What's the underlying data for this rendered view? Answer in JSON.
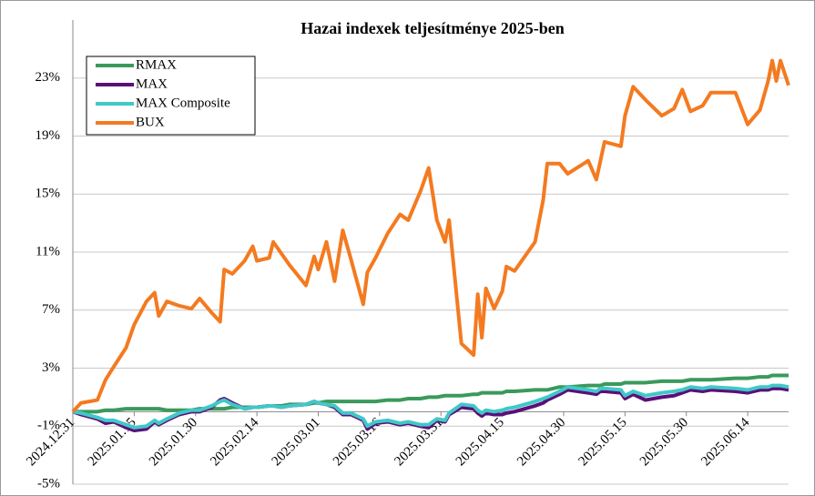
{
  "chart_data": {
    "type": "line",
    "title": "Hazai indexek teljesítménye 2025-ben",
    "x": [
      "2024.12.31",
      "2025.01.02",
      "2025.01.06",
      "2025.01.08",
      "2025.01.10",
      "2025.01.13",
      "2025.01.15",
      "2025.01.18",
      "2025.01.20",
      "2025.01.21",
      "2025.01.23",
      "2025.01.26",
      "2025.01.29",
      "2025.01.31",
      "2025.02.03",
      "2025.02.05",
      "2025.02.06",
      "2025.02.08",
      "2025.02.11",
      "2025.02.13",
      "2025.02.14",
      "2025.02.17",
      "2025.02.18",
      "2025.02.20",
      "2025.02.22",
      "2025.02.26",
      "2025.02.28",
      "2025.03.01",
      "2025.03.03",
      "2025.03.05",
      "2025.03.07",
      "2025.03.09",
      "2025.03.12",
      "2025.03.13",
      "2025.03.15",
      "2025.03.18",
      "2025.03.21",
      "2025.03.23",
      "2025.03.26",
      "2025.03.28",
      "2025.03.30",
      "2025.04.01",
      "2025.04.02",
      "2025.04.05",
      "2025.04.08",
      "2025.04.09",
      "2025.04.10",
      "2025.04.11",
      "2025.04.13",
      "2025.04.15",
      "2025.04.16",
      "2025.04.18",
      "2025.04.23",
      "2025.04.25",
      "2025.04.26",
      "2025.04.29",
      "2025.05.01",
      "2025.05.06",
      "2025.05.08",
      "2025.05.09",
      "2025.05.10",
      "2025.05.14",
      "2025.05.15",
      "2025.05.17",
      "2025.05.20",
      "2025.05.24",
      "2025.05.27",
      "2025.05.29",
      "2025.05.31",
      "2025.06.03",
      "2025.06.05",
      "2025.06.11",
      "2025.06.14",
      "2025.06.17",
      "2025.06.19",
      "2025.06.20",
      "2025.06.21",
      "2025.06.22",
      "2025.06.24"
    ],
    "series": [
      {
        "name": "RMAX",
        "color": "#3a9a5c",
        "values": [
          0,
          0,
          0,
          0.1,
          0.1,
          0.2,
          0.2,
          0.2,
          0.2,
          0.2,
          0.1,
          0.1,
          0.1,
          0.2,
          0.2,
          0.2,
          0.2,
          0.3,
          0.3,
          0.3,
          0.3,
          0.4,
          0.4,
          0.4,
          0.5,
          0.5,
          0.6,
          0.6,
          0.7,
          0.7,
          0.7,
          0.7,
          0.7,
          0.7,
          0.7,
          0.8,
          0.8,
          0.9,
          0.9,
          1.0,
          1.0,
          1.1,
          1.1,
          1.1,
          1.2,
          1.2,
          1.3,
          1.3,
          1.3,
          1.3,
          1.4,
          1.4,
          1.5,
          1.5,
          1.5,
          1.7,
          1.7,
          1.8,
          1.8,
          1.8,
          1.9,
          1.9,
          2.0,
          2.0,
          2.0,
          2.1,
          2.1,
          2.1,
          2.2,
          2.2,
          2.2,
          2.3,
          2.3,
          2.4,
          2.4,
          2.5,
          2.5,
          2.5,
          2.5
        ]
      },
      {
        "name": "MAX",
        "color": "#5b0f7a",
        "values": [
          0,
          -0.2,
          -0.5,
          -0.8,
          -0.7,
          -1.1,
          -1.3,
          -1.2,
          -0.7,
          -0.9,
          -0.6,
          -0.2,
          0.0,
          0.0,
          0.3,
          0.8,
          0.9,
          0.6,
          0.2,
          0.3,
          0.3,
          0.4,
          0.4,
          0.3,
          0.4,
          0.5,
          0.7,
          0.6,
          0.5,
          0.3,
          -0.2,
          -0.2,
          -0.6,
          -1.2,
          -0.8,
          -0.7,
          -0.9,
          -0.8,
          -1.0,
          -1.1,
          -0.6,
          -0.7,
          -0.2,
          0.3,
          0.2,
          -0.1,
          -0.3,
          -0.1,
          -0.2,
          -0.2,
          -0.1,
          0.0,
          0.4,
          0.6,
          0.8,
          1.2,
          1.5,
          1.3,
          1.2,
          1.4,
          1.4,
          1.3,
          0.9,
          1.2,
          0.8,
          1.0,
          1.1,
          1.3,
          1.5,
          1.4,
          1.5,
          1.4,
          1.3,
          1.5,
          1.5,
          1.6,
          1.6,
          1.6,
          1.5
        ]
      },
      {
        "name": "MAX Composite",
        "color": "#40c8c8",
        "values": [
          0,
          -0.1,
          -0.4,
          -0.6,
          -0.6,
          -0.9,
          -1.1,
          -1.0,
          -0.6,
          -0.8,
          -0.5,
          -0.1,
          0.1,
          0.1,
          0.4,
          0.7,
          0.8,
          0.5,
          0.2,
          0.3,
          0.3,
          0.4,
          0.4,
          0.3,
          0.4,
          0.5,
          0.7,
          0.6,
          0.5,
          0.4,
          -0.1,
          -0.1,
          -0.5,
          -1.0,
          -0.7,
          -0.6,
          -0.8,
          -0.7,
          -0.9,
          -0.9,
          -0.5,
          -0.6,
          -0.1,
          0.5,
          0.4,
          0.1,
          -0.1,
          0.1,
          0.0,
          0.1,
          0.2,
          0.3,
          0.7,
          0.9,
          1.0,
          1.4,
          1.7,
          1.5,
          1.4,
          1.6,
          1.6,
          1.5,
          1.1,
          1.4,
          1.1,
          1.3,
          1.4,
          1.5,
          1.7,
          1.6,
          1.7,
          1.6,
          1.5,
          1.7,
          1.7,
          1.8,
          1.8,
          1.8,
          1.7
        ]
      },
      {
        "name": "BUX",
        "color": "#f47a20",
        "values": [
          0,
          0.6,
          0.8,
          2.2,
          3.1,
          4.4,
          6.0,
          7.6,
          8.2,
          6.6,
          7.6,
          7.3,
          7.1,
          7.8,
          6.8,
          6.2,
          9.8,
          9.5,
          10.4,
          11.4,
          10.4,
          10.6,
          11.7,
          10.9,
          10.1,
          8.7,
          10.7,
          9.8,
          11.7,
          9.0,
          12.5,
          10.5,
          7.4,
          9.6,
          10.6,
          12.3,
          13.6,
          13.2,
          15.2,
          16.8,
          13.2,
          11.7,
          13.2,
          4.7,
          3.9,
          8.1,
          5.1,
          8.5,
          7.1,
          8.3,
          10.0,
          9.7,
          11.7,
          14.6,
          17.1,
          17.1,
          16.4,
          17.3,
          16.0,
          17.3,
          18.6,
          18.3,
          20.4,
          22.4,
          21.5,
          20.4,
          20.9,
          22.2,
          20.7,
          21.1,
          22.0,
          22.0,
          19.8,
          20.8,
          22.8,
          24.2,
          22.8,
          24.2,
          22.5
        ]
      }
    ],
    "xlim": [
      "2024.12.31",
      "2025.06.24"
    ],
    "xticks": [
      "2024.12.31",
      "2025.01.15",
      "2025.01.30",
      "2025.02.14",
      "2025.03.01",
      "2025.03.16",
      "2025.03.31",
      "2025.04.15",
      "2025.04.30",
      "2025.05.15",
      "2025.05.30",
      "2025.06.14"
    ],
    "ylim": [
      -5,
      27
    ],
    "yticks": [
      {
        "value": -5,
        "label": "-5%"
      },
      {
        "value": -1,
        "label": "-1%"
      },
      {
        "value": 3,
        "label": "3%"
      },
      {
        "value": 7,
        "label": "7%"
      },
      {
        "value": 11,
        "label": "11%"
      },
      {
        "value": 15,
        "label": "15%"
      },
      {
        "value": 19,
        "label": "19%"
      },
      {
        "value": 23,
        "label": "23%"
      }
    ],
    "grid": true,
    "legend": "upper left"
  }
}
